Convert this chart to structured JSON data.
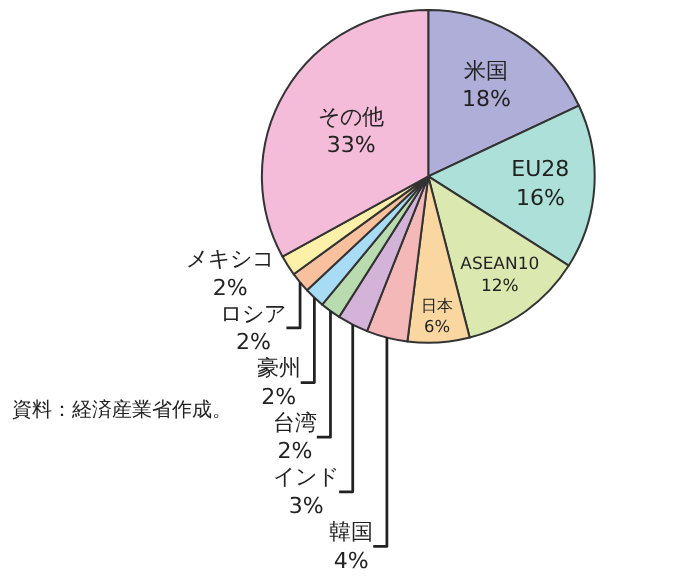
{
  "chart_data": {
    "type": "pie",
    "categories": [
      "米国",
      "EU28",
      "ASEAN10",
      "日本",
      "韓国",
      "インド",
      "台湾",
      "豪州",
      "ロシア",
      "メキシコ",
      "その他"
    ],
    "values": [
      18,
      16,
      12,
      6,
      4,
      3,
      2,
      2,
      2,
      2,
      33
    ],
    "value_labels": [
      "18%",
      "16%",
      "12%",
      "6%",
      "4%",
      "3%",
      "2%",
      "2%",
      "2%",
      "2%",
      "33%"
    ],
    "colors": [
      "#aeaed8",
      "#ace0d8",
      "#dbe8b0",
      "#fad7a0",
      "#f4b8b8",
      "#d3b4d8",
      "#b8dcb0",
      "#a8dcf4",
      "#f8c09c",
      "#fdf0a8",
      "#f4bcd8"
    ],
    "annotations": [
      "資料：経済産業省作成。"
    ]
  }
}
